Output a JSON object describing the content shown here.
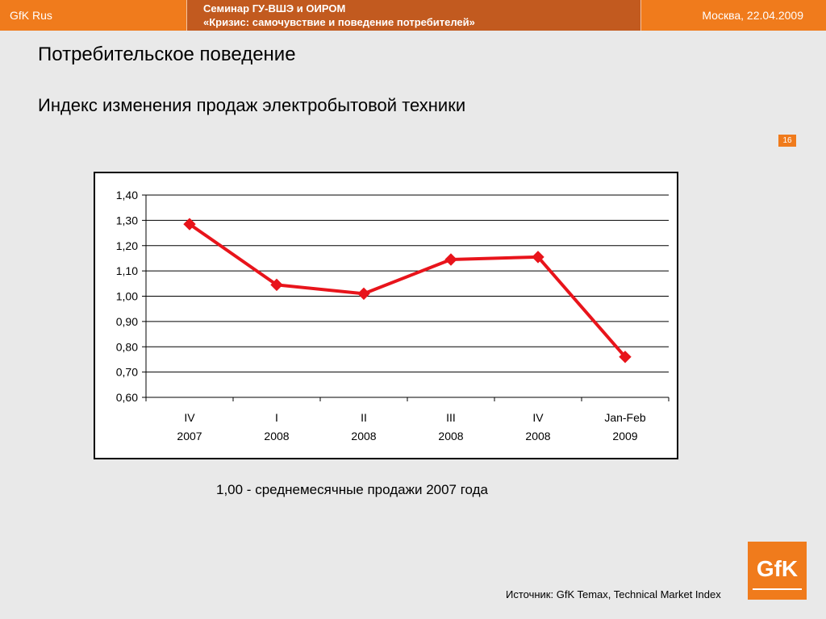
{
  "header": {
    "brand": "GfK Rus",
    "seminar_line1": "Семинар ГУ-ВШЭ и ОИРОМ",
    "seminar_line2": "«Кризис: самочувствие и поведение потребителей»",
    "place_date": "Москва, 22.04.2009"
  },
  "slide": {
    "title": "Потребительское поведение",
    "subtitle": "Индекс изменения продаж электробытовой техники",
    "page_number": "16",
    "note": "1,00 - среднемесячные продажи 2007 года",
    "source": "Источник: GfK Temax, Technical Market Index",
    "logo_text": "GfK"
  },
  "colors": {
    "brand_orange": "#f07b1c",
    "header_dark": "#c25a1f",
    "series_line": "#e8141b"
  },
  "chart_data": {
    "type": "line",
    "categories": [
      [
        "IV",
        "2007"
      ],
      [
        "I",
        "2008"
      ],
      [
        "II",
        "2008"
      ],
      [
        "III",
        "2008"
      ],
      [
        "IV",
        "2008"
      ],
      [
        "Jan-Feb",
        "2009"
      ]
    ],
    "series": [
      {
        "values": [
          1.285,
          1.045,
          1.01,
          1.145,
          1.155,
          0.76
        ]
      }
    ],
    "ylim": [
      0.6,
      1.4
    ],
    "yticks": [
      "0,60",
      "0,70",
      "0,80",
      "0,90",
      "1,00",
      "1,10",
      "1,20",
      "1,30",
      "1,40"
    ],
    "grid": true,
    "legend": "none",
    "marker": "diamond"
  }
}
